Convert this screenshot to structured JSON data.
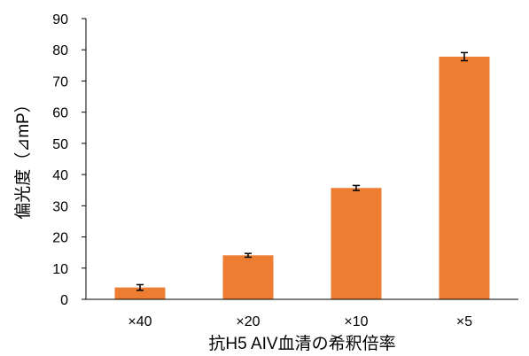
{
  "chart_data": {
    "type": "bar",
    "categories": [
      "×40",
      "×20",
      "×10",
      "×5"
    ],
    "values": [
      3.8,
      14.1,
      35.7,
      77.8
    ],
    "errors": [
      0.9,
      0.6,
      0.8,
      1.3
    ],
    "xlabel": "抗H5 AIV血清の希釈倍率",
    "ylabel": "偏光度（⊿mP）",
    "ylim": [
      0,
      90
    ],
    "yticks": [
      0,
      10,
      20,
      30,
      40,
      50,
      60,
      70,
      80,
      90
    ],
    "grid": false,
    "legend": "none",
    "colors": {
      "bar": "#ED7D31",
      "axis": "#000000",
      "error": "#000000"
    }
  }
}
